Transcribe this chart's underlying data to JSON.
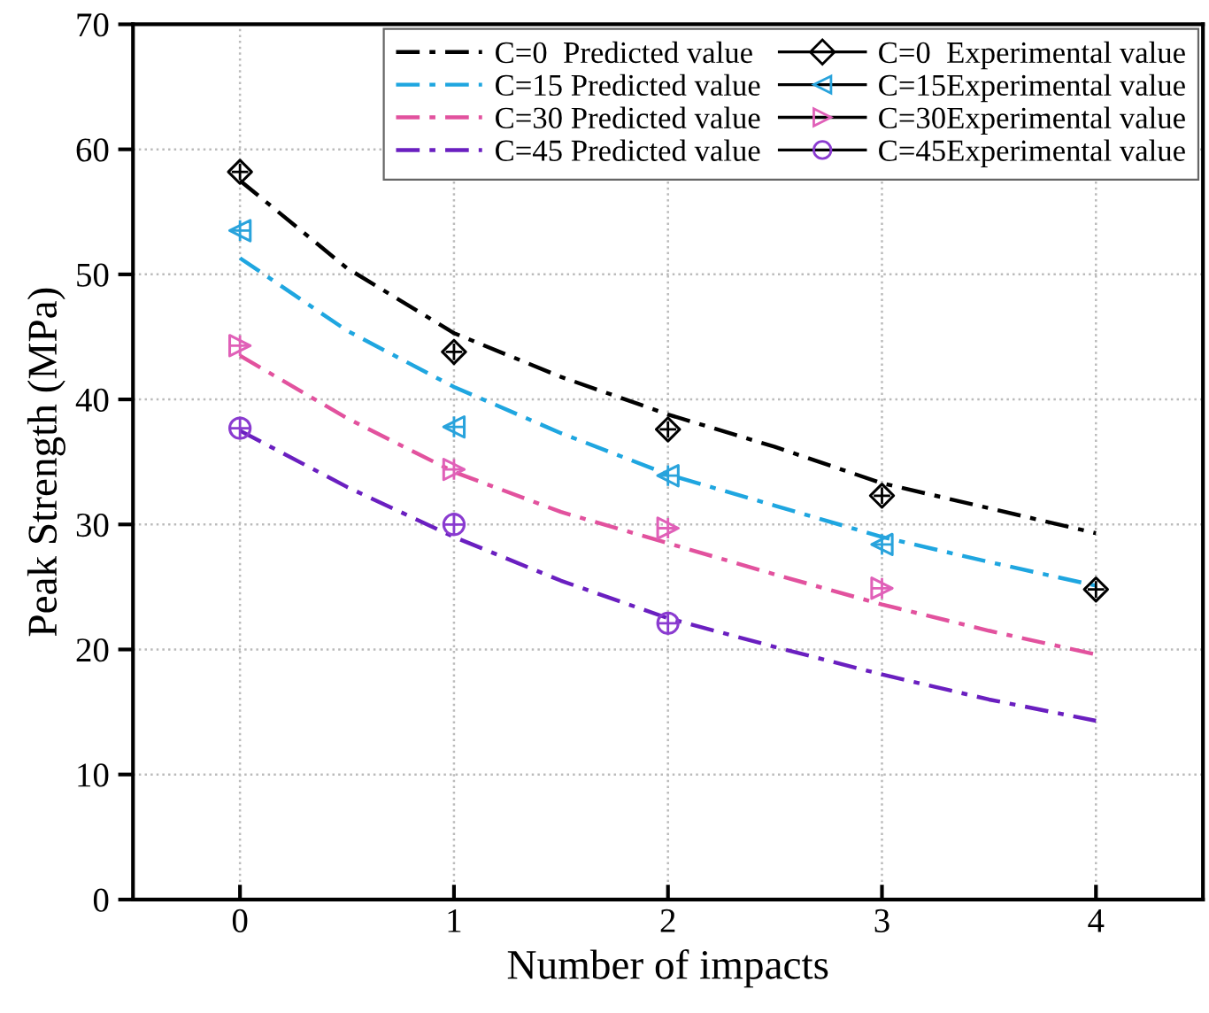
{
  "chart_data": {
    "type": "line",
    "xlabel": "Number of impacts",
    "ylabel": "Peak Strength (MPa)",
    "xlim": [
      -0.5,
      4.5
    ],
    "ylim": [
      0,
      70
    ],
    "xticks": [
      0,
      1,
      2,
      3,
      4
    ],
    "yticks": [
      0,
      10,
      20,
      30,
      40,
      50,
      60,
      70
    ],
    "grid": true,
    "legend": "top right",
    "series": [
      {
        "name": "C=0  Predicted value",
        "line_style": "dashdot",
        "marker": "none",
        "color": "#000000",
        "x": [
          0,
          0.5,
          1,
          1.5,
          2,
          2.5,
          3,
          3.5,
          4
        ],
        "values": [
          57.5,
          50.5,
          45.3,
          41.8,
          38.8,
          36.2,
          33.3,
          31.3,
          29.3
        ]
      },
      {
        "name": "C=15 Predicted value",
        "line_style": "dashdot",
        "marker": "none",
        "color": "#1fa6e0",
        "x": [
          0,
          0.5,
          1,
          1.5,
          2,
          2.5,
          3,
          3.5,
          4
        ],
        "values": [
          51.3,
          45.5,
          41,
          37.3,
          34,
          31.5,
          29,
          27,
          25.1
        ]
      },
      {
        "name": "C=30 Predicted value",
        "line_style": "dashdot",
        "marker": "none",
        "color": "#e2529e",
        "x": [
          0,
          0.5,
          1,
          1.5,
          2,
          2.5,
          3,
          3.5,
          4
        ],
        "values": [
          43.5,
          38.5,
          34.2,
          31,
          28.5,
          26,
          23.6,
          21.5,
          19.6
        ]
      },
      {
        "name": "C=45 Predicted value",
        "line_style": "dashdot",
        "marker": "none",
        "color": "#6a1fc0",
        "x": [
          0,
          0.5,
          1,
          1.5,
          2,
          2.5,
          3,
          3.5,
          4
        ],
        "values": [
          37.5,
          33,
          29,
          25.5,
          22.5,
          20.2,
          18,
          16,
          14.3
        ]
      },
      {
        "name": "C=0  Experimental value",
        "type": "scatter",
        "marker": "diamond",
        "color": "#000000",
        "x": [
          0,
          1,
          2,
          3,
          4
        ],
        "values": [
          58.2,
          43.8,
          37.6,
          32.3,
          24.8
        ]
      },
      {
        "name": "C=15Experimental value",
        "type": "scatter",
        "marker": "triangle-left",
        "color": "#29a3dc",
        "x": [
          0,
          1,
          2,
          3
        ],
        "values": [
          53.5,
          37.8,
          33.9,
          28.4
        ]
      },
      {
        "name": "C=30Experimental value",
        "type": "scatter",
        "marker": "triangle-right",
        "color": "#e060b8",
        "x": [
          0,
          1,
          2,
          3
        ],
        "values": [
          44.3,
          34.4,
          29.7,
          24.9
        ]
      },
      {
        "name": "C=45Experimental value",
        "type": "scatter",
        "marker": "circle",
        "color": "#8a3bd0",
        "x": [
          0,
          1,
          2
        ],
        "values": [
          37.7,
          30,
          22.1
        ]
      }
    ]
  }
}
